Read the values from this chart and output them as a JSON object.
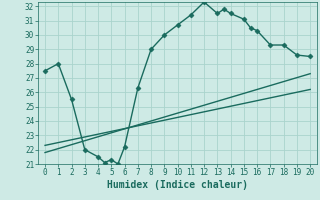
{
  "xlabel": "Humidex (Indice chaleur)",
  "bg_color": "#ceeae5",
  "grid_color": "#aad4cc",
  "line_color": "#1a6b5e",
  "xlim": [
    -0.5,
    20.5
  ],
  "ylim": [
    21,
    32.3
  ],
  "xticks": [
    0,
    1,
    2,
    3,
    4,
    5,
    6,
    7,
    8,
    9,
    10,
    11,
    12,
    13,
    14,
    15,
    16,
    17,
    18,
    19,
    20
  ],
  "yticks": [
    21,
    22,
    23,
    24,
    25,
    26,
    27,
    28,
    29,
    30,
    31,
    32
  ],
  "main_x": [
    0,
    1,
    2,
    3,
    4,
    4.5,
    5,
    5.5,
    6,
    7,
    8,
    9,
    10,
    11,
    12,
    13,
    13.5,
    14,
    15,
    15.5,
    16,
    17,
    18,
    19,
    20
  ],
  "main_y": [
    27.5,
    28.0,
    25.5,
    22.0,
    21.5,
    21.1,
    21.3,
    21.0,
    22.2,
    26.3,
    29.0,
    30.0,
    30.7,
    31.4,
    32.3,
    31.5,
    31.8,
    31.5,
    31.1,
    30.5,
    30.3,
    29.3,
    29.3,
    28.6,
    28.5
  ],
  "line1_x": [
    0,
    20
  ],
  "line1_y": [
    21.8,
    27.3
  ],
  "line2_x": [
    0,
    20
  ],
  "line2_y": [
    22.3,
    26.2
  ],
  "marker": "D",
  "marker_size": 2.5,
  "line_width": 1.0
}
